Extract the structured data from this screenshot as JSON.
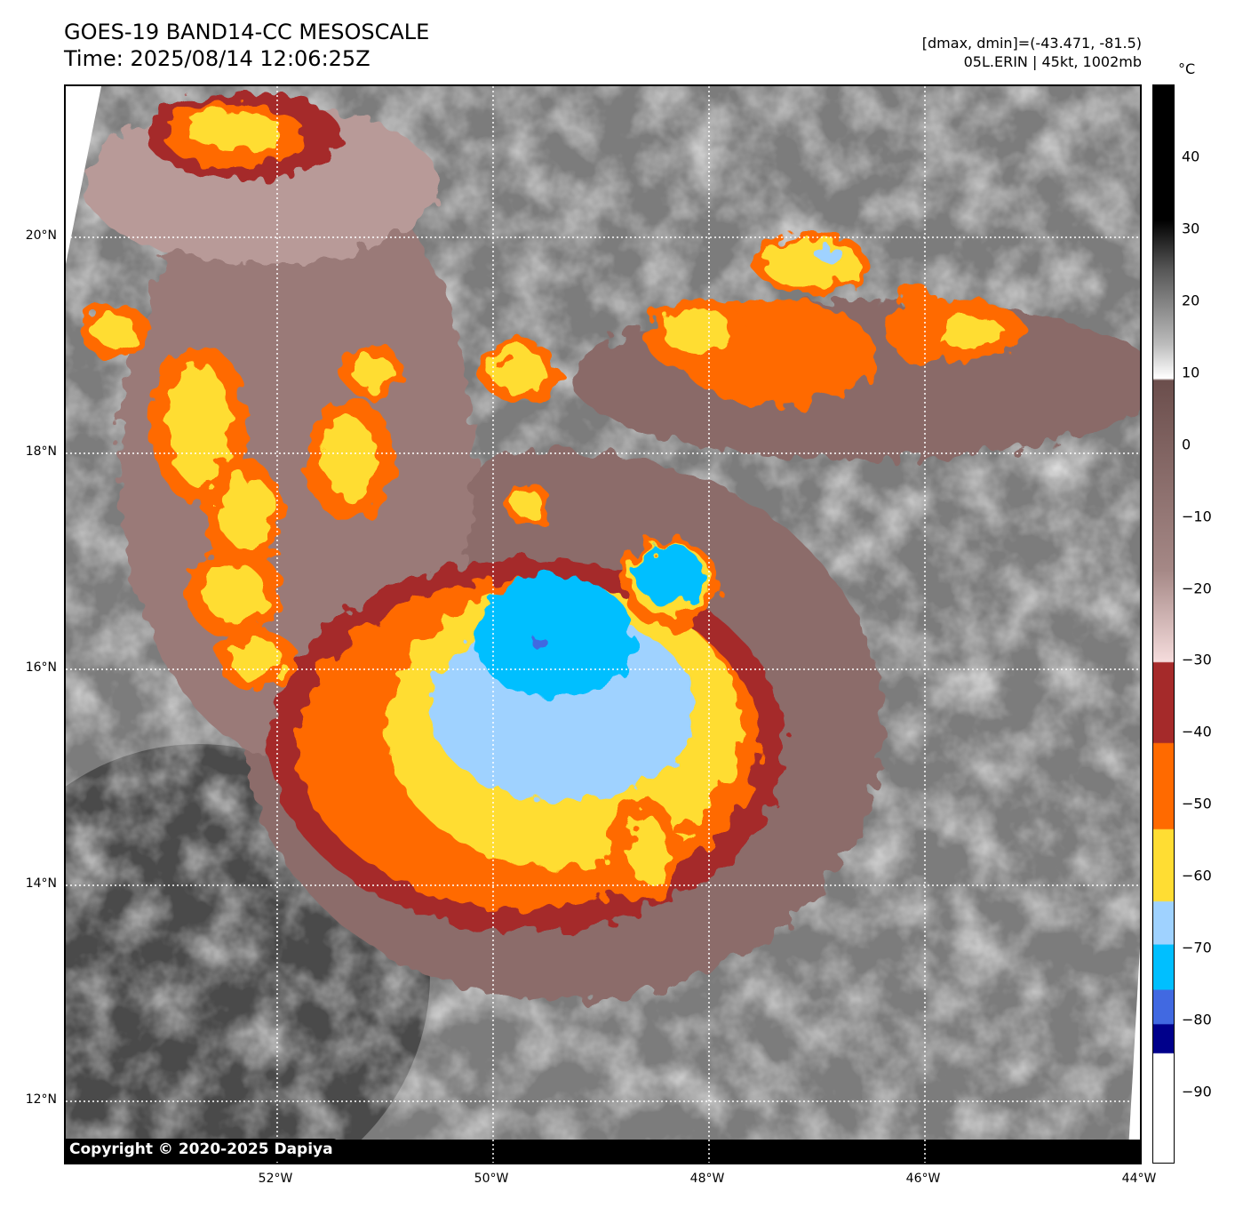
{
  "header": {
    "title": "GOES-19 BAND14-CC MESOSCALE",
    "time": "Time: 2025/08/14 12:06:25Z",
    "range_info": "[dmax, dmin]=(-43.471, -81.5)",
    "storm_info": "05L.ERIN | 45kt, 1002mb"
  },
  "map": {
    "lat_labels": [
      "20°N",
      "18°N",
      "16°N",
      "14°N",
      "12°N"
    ],
    "lat_values": [
      20,
      18,
      16,
      14,
      12
    ],
    "lon_labels": [
      "52°W",
      "50°W",
      "48°W",
      "46°W",
      "44°W"
    ],
    "lon_values": [
      -52,
      -50,
      -48,
      -46,
      -44
    ],
    "lat_range": [
      11.4,
      21.4
    ],
    "lon_range": [
      -54,
      -44
    ],
    "copyright": "Copyright © 2020-2025 Dapiya"
  },
  "colorbar": {
    "unit": "°C",
    "range": [
      -100,
      50
    ],
    "ticks": [
      "40",
      "30",
      "20",
      "10",
      "0",
      "−10",
      "−20",
      "−30",
      "−40",
      "−50",
      "−60",
      "−70",
      "−80",
      "−90"
    ],
    "tick_values": [
      40,
      30,
      20,
      10,
      0,
      -10,
      -20,
      -30,
      -40,
      -50,
      -60,
      -70,
      -80,
      -90
    ],
    "colors": {
      "black": "#000000",
      "white": "#ffffff",
      "brown": "#6b4e4c",
      "pink": "#f5dcdc",
      "darkred": "#a52a2a",
      "orange": "#ff6a00",
      "yellow": "#ffdd33",
      "lightblue": "#9fd2ff",
      "skyblue": "#00bfff",
      "royalblue": "#4169e1",
      "navy": "#00008b"
    }
  }
}
